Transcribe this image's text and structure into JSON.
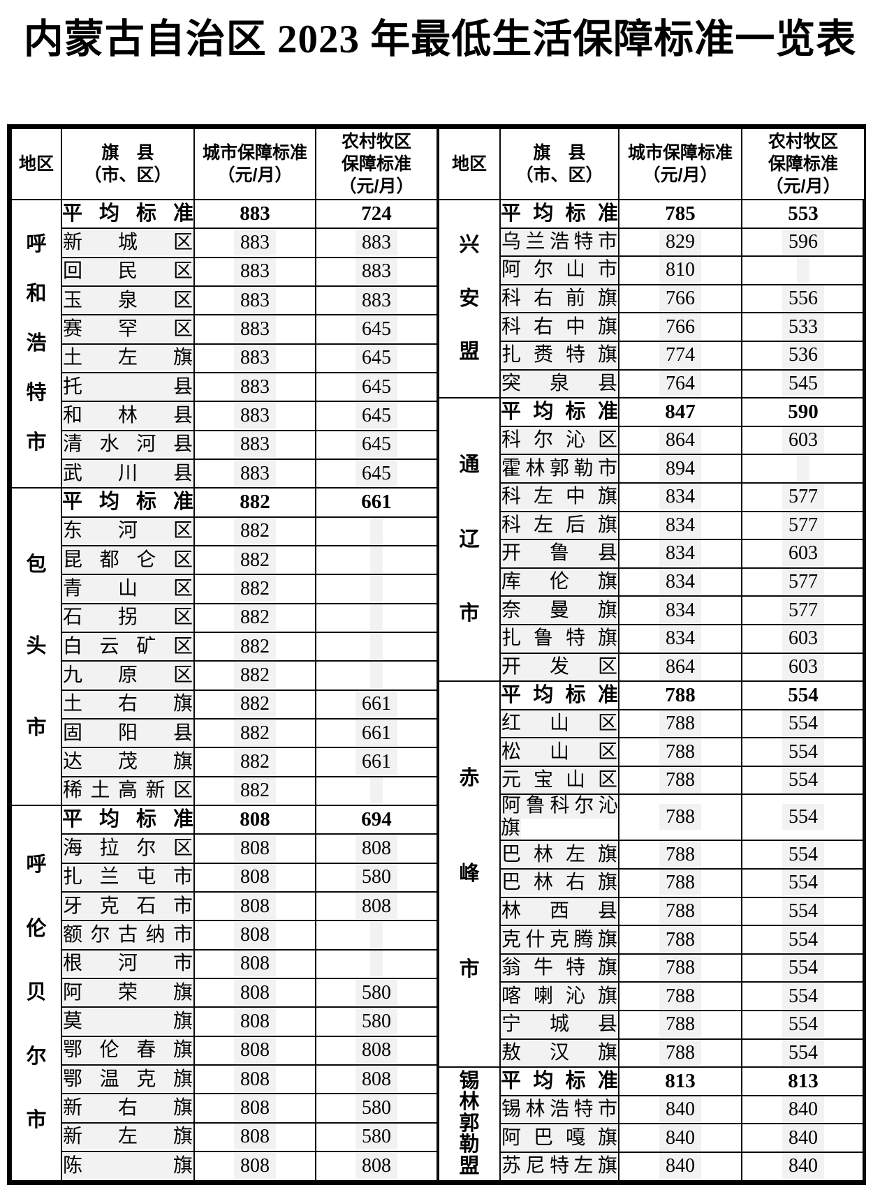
{
  "page_title": "内蒙古自治区 2023 年最低生活保障标准一览表",
  "columns": {
    "region": "地区",
    "county": "旗　县\n（市、区）",
    "urban": "城市保障标准\n（元/月）",
    "rural": "农村牧区\n保障标准\n（元/月）"
  },
  "halves": [
    {
      "regions": [
        {
          "name": "呼和浩特市",
          "rows": [
            {
              "county": "平均标准",
              "urban": "883",
              "rural": "724",
              "avg": true
            },
            {
              "county": "新城区",
              "urban": "883",
              "rural": "883"
            },
            {
              "county": "回民区",
              "urban": "883",
              "rural": "883"
            },
            {
              "county": "玉泉区",
              "urban": "883",
              "rural": "883"
            },
            {
              "county": "赛罕区",
              "urban": "883",
              "rural": "645"
            },
            {
              "county": "土左旗",
              "urban": "883",
              "rural": "645"
            },
            {
              "county": "托县",
              "urban": "883",
              "rural": "645"
            },
            {
              "county": "和林县",
              "urban": "883",
              "rural": "645"
            },
            {
              "county": "清水河县",
              "urban": "883",
              "rural": "645"
            },
            {
              "county": "武川县",
              "urban": "883",
              "rural": "645"
            }
          ]
        },
        {
          "name": "包头市",
          "rows": [
            {
              "county": "平均标准",
              "urban": "882",
              "rural": "661",
              "avg": true
            },
            {
              "county": "东河区",
              "urban": "882",
              "rural": ""
            },
            {
              "county": "昆都仑区",
              "urban": "882",
              "rural": ""
            },
            {
              "county": "青山区",
              "urban": "882",
              "rural": ""
            },
            {
              "county": "石拐区",
              "urban": "882",
              "rural": ""
            },
            {
              "county": "白云矿区",
              "urban": "882",
              "rural": ""
            },
            {
              "county": "九原区",
              "urban": "882",
              "rural": ""
            },
            {
              "county": "土右旗",
              "urban": "882",
              "rural": "661"
            },
            {
              "county": "固阳县",
              "urban": "882",
              "rural": "661"
            },
            {
              "county": "达茂旗",
              "urban": "882",
              "rural": "661"
            },
            {
              "county": "稀土高新区",
              "urban": "882",
              "rural": ""
            }
          ]
        },
        {
          "name": "呼伦贝尔市",
          "rows": [
            {
              "county": "平均标准",
              "urban": "808",
              "rural": "694",
              "avg": true
            },
            {
              "county": "海拉尔区",
              "urban": "808",
              "rural": "808"
            },
            {
              "county": "扎兰屯市",
              "urban": "808",
              "rural": "580"
            },
            {
              "county": "牙克石市",
              "urban": "808",
              "rural": "808"
            },
            {
              "county": "额尔古纳市",
              "urban": "808",
              "rural": ""
            },
            {
              "county": "根河市",
              "urban": "808",
              "rural": ""
            },
            {
              "county": "阿荣旗",
              "urban": "808",
              "rural": "580"
            },
            {
              "county": "莫旗",
              "urban": "808",
              "rural": "580"
            },
            {
              "county": "鄂伦春旗",
              "urban": "808",
              "rural": "808"
            },
            {
              "county": "鄂温克旗",
              "urban": "808",
              "rural": "808"
            },
            {
              "county": "新右旗",
              "urban": "808",
              "rural": "580"
            },
            {
              "county": "新左旗",
              "urban": "808",
              "rural": "580"
            },
            {
              "county": "陈旗",
              "urban": "808",
              "rural": "808"
            }
          ]
        }
      ]
    },
    {
      "regions": [
        {
          "name": "兴安盟",
          "rows": [
            {
              "county": "平均标准",
              "urban": "785",
              "rural": "553",
              "avg": true
            },
            {
              "county": "乌兰浩特市",
              "urban": "829",
              "rural": "596"
            },
            {
              "county": "阿尔山市",
              "urban": "810",
              "rural": ""
            },
            {
              "county": "科右前旗",
              "urban": "766",
              "rural": "556"
            },
            {
              "county": "科右中旗",
              "urban": "766",
              "rural": "533"
            },
            {
              "county": "扎赉特旗",
              "urban": "774",
              "rural": "536"
            },
            {
              "county": "突泉县",
              "urban": "764",
              "rural": "545"
            }
          ]
        },
        {
          "name": "通辽市",
          "rows": [
            {
              "county": "平均标准",
              "urban": "847",
              "rural": "590",
              "avg": true
            },
            {
              "county": "科尔沁区",
              "urban": "864",
              "rural": "603"
            },
            {
              "county": "霍林郭勒市",
              "urban": "894",
              "rural": ""
            },
            {
              "county": "科左中旗",
              "urban": "834",
              "rural": "577"
            },
            {
              "county": "科左后旗",
              "urban": "834",
              "rural": "577"
            },
            {
              "county": "开鲁县",
              "urban": "834",
              "rural": "603"
            },
            {
              "county": "库伦旗",
              "urban": "834",
              "rural": "577"
            },
            {
              "county": "奈曼旗",
              "urban": "834",
              "rural": "577"
            },
            {
              "county": "扎鲁特旗",
              "urban": "834",
              "rural": "603"
            },
            {
              "county": "开发区",
              "urban": "864",
              "rural": "603"
            }
          ]
        },
        {
          "name": "赤峰市",
          "rows": [
            {
              "county": "平均标准",
              "urban": "788",
              "rural": "554",
              "avg": true
            },
            {
              "county": "红山区",
              "urban": "788",
              "rural": "554"
            },
            {
              "county": "松山区",
              "urban": "788",
              "rural": "554"
            },
            {
              "county": "元宝山区",
              "urban": "788",
              "rural": "554"
            },
            {
              "county": "阿鲁科尔沁旗",
              "urban": "788",
              "rural": "554"
            },
            {
              "county": "巴林左旗",
              "urban": "788",
              "rural": "554"
            },
            {
              "county": "巴林右旗",
              "urban": "788",
              "rural": "554"
            },
            {
              "county": "林西县",
              "urban": "788",
              "rural": "554"
            },
            {
              "county": "克什克腾旗",
              "urban": "788",
              "rural": "554"
            },
            {
              "county": "翁牛特旗",
              "urban": "788",
              "rural": "554"
            },
            {
              "county": "喀喇沁旗",
              "urban": "788",
              "rural": "554"
            },
            {
              "county": "宁城县",
              "urban": "788",
              "rural": "554"
            },
            {
              "county": "敖汉旗",
              "urban": "788",
              "rural": "554"
            }
          ]
        },
        {
          "name": "锡林郭勒盟",
          "rows": [
            {
              "county": "平均标准",
              "urban": "813",
              "rural": "813",
              "avg": true
            },
            {
              "county": "锡林浩特市",
              "urban": "840",
              "rural": "840"
            },
            {
              "county": "阿巴嘎旗",
              "urban": "840",
              "rural": "840"
            },
            {
              "county": "苏尼特左旗",
              "urban": "840",
              "rural": "840"
            }
          ]
        }
      ]
    }
  ]
}
